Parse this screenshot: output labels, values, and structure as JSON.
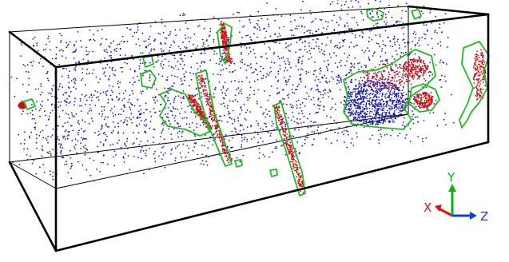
{
  "colors": {
    "background": "#ffffff",
    "box_edges": "#000000",
    "points": "#1a1aa8",
    "clusters": "#cc1111",
    "contours": "#22bb22",
    "axis_x": "#e01010",
    "axis_y": "#10b010",
    "axis_z": "#1040e0"
  },
  "axes_triad": {
    "x_label": "X",
    "y_label": "Y",
    "z_label": "Z"
  }
}
